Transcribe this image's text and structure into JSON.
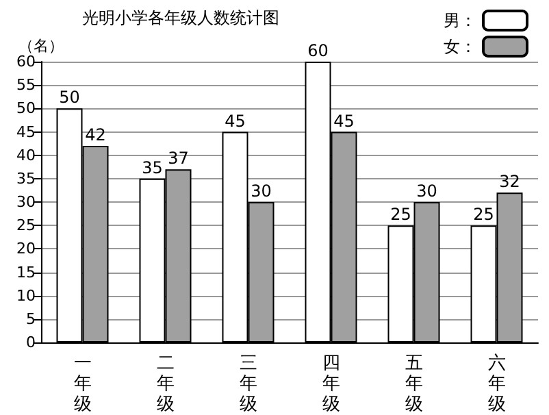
{
  "chart_data": {
    "type": "bar",
    "title": "光明小学各年级人数统计图",
    "ylabel": "（名）",
    "categories": [
      "一年级",
      "二年级",
      "三年级",
      "四年级",
      "五年级",
      "六年级"
    ],
    "series": [
      {
        "name": "男：",
        "color": "#ffffff",
        "values": [
          50,
          35,
          45,
          60,
          25,
          25
        ]
      },
      {
        "name": "女：",
        "color": "#a0a0a0",
        "values": [
          42,
          37,
          30,
          45,
          30,
          32
        ]
      }
    ],
    "ylim": [
      0,
      60
    ],
    "yticks": [
      0,
      5,
      10,
      15,
      20,
      25,
      30,
      35,
      40,
      45,
      50,
      55,
      60
    ],
    "grid": "y",
    "legend": "top right",
    "data_labels": true
  }
}
